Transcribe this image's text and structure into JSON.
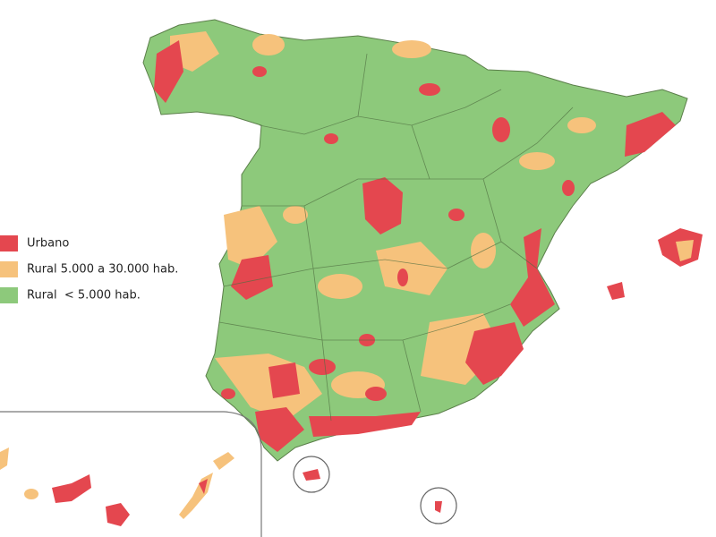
{
  "legend": {
    "items": [
      {
        "label": "Urbano",
        "color": "#e4474f"
      },
      {
        "label": "Rural 5.000 a 30.000 hab.",
        "color": "#f6c27c"
      },
      {
        "label": "Rural  < 5.000 hab.",
        "color": "#8dc97b"
      }
    ]
  }
}
